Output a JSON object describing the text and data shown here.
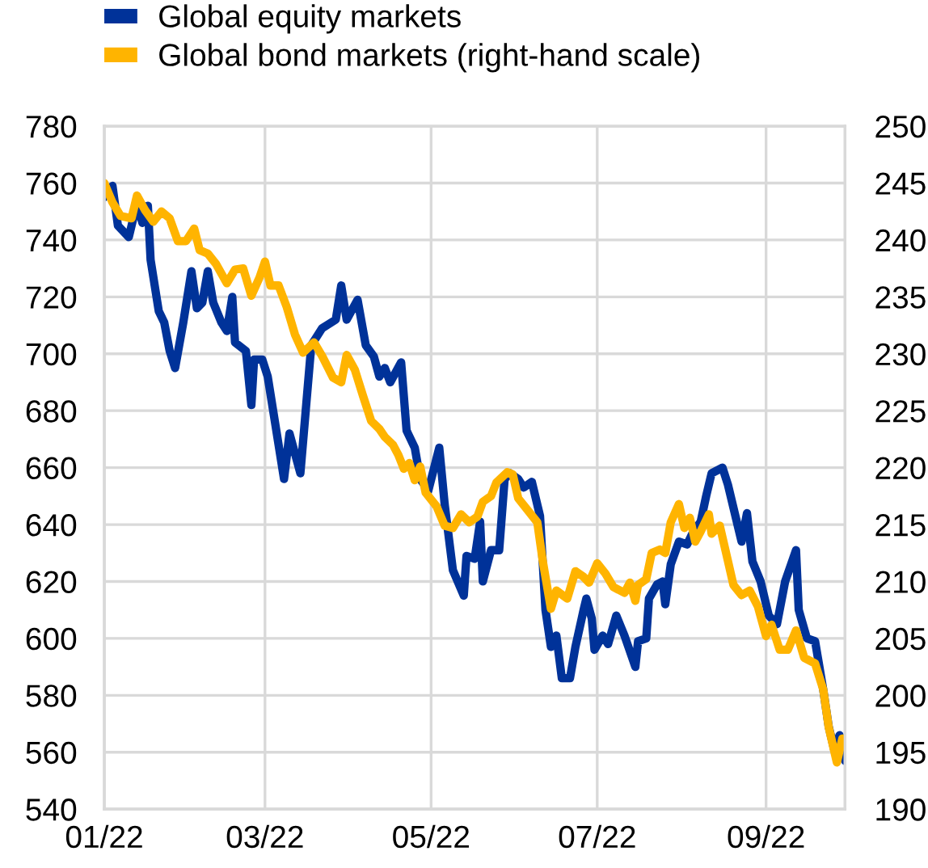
{
  "chart_data": {
    "type": "line",
    "xlim": [
      "2022-01-01",
      "2022-09-30"
    ],
    "xticks": [
      {
        "value": "2022-01-01",
        "label": "01/22"
      },
      {
        "value": "2022-03-01",
        "label": "03/22"
      },
      {
        "value": "2022-05-01",
        "label": "05/22"
      },
      {
        "value": "2022-07-01",
        "label": "07/22"
      },
      {
        "value": "2022-09-01",
        "label": "09/22"
      }
    ],
    "ylim": [
      540,
      780
    ],
    "yticks": [
      540,
      560,
      580,
      600,
      620,
      640,
      660,
      680,
      700,
      720,
      740,
      760,
      780
    ],
    "y2lim": [
      190,
      250
    ],
    "y2ticks": [
      190,
      195,
      200,
      205,
      210,
      215,
      220,
      225,
      230,
      235,
      240,
      245,
      250
    ],
    "grid": true,
    "legend": "top left",
    "series": [
      {
        "name": "Global equity markets",
        "color": "#003299",
        "x": [
          "2022-01-01",
          "2022-01-04",
          "2022-01-06",
          "2022-01-10",
          "2022-01-13",
          "2022-01-15",
          "2022-01-17",
          "2022-01-18",
          "2022-01-21",
          "2022-01-23",
          "2022-01-25",
          "2022-01-27",
          "2022-01-30",
          "2022-02-02",
          "2022-02-04",
          "2022-02-06",
          "2022-02-08",
          "2022-02-10",
          "2022-02-13",
          "2022-02-15",
          "2022-02-17",
          "2022-02-18",
          "2022-02-22",
          "2022-02-24",
          "2022-02-25",
          "2022-02-28",
          "2022-03-02",
          "2022-03-08",
          "2022-03-10",
          "2022-03-14",
          "2022-03-18",
          "2022-03-22",
          "2022-03-27",
          "2022-03-29",
          "2022-03-31",
          "2022-04-04",
          "2022-04-07",
          "2022-04-10",
          "2022-04-12",
          "2022-04-14",
          "2022-04-16",
          "2022-04-20",
          "2022-04-22",
          "2022-04-25",
          "2022-04-27",
          "2022-04-30",
          "2022-05-04",
          "2022-05-06",
          "2022-05-09",
          "2022-05-13",
          "2022-05-14",
          "2022-05-17",
          "2022-05-19",
          "2022-05-20",
          "2022-05-23",
          "2022-05-26",
          "2022-05-28",
          "2022-05-30",
          "2022-06-02",
          "2022-06-04",
          "2022-06-07",
          "2022-06-10",
          "2022-06-12",
          "2022-06-14",
          "2022-06-16",
          "2022-06-18",
          "2022-06-21",
          "2022-06-23",
          "2022-06-26",
          "2022-06-27",
          "2022-06-29",
          "2022-06-30",
          "2022-07-03",
          "2022-07-05",
          "2022-07-08",
          "2022-07-11",
          "2022-07-15",
          "2022-07-16",
          "2022-07-19",
          "2022-07-20",
          "2022-07-23",
          "2022-07-25",
          "2022-07-26",
          "2022-07-28",
          "2022-07-31",
          "2022-08-03",
          "2022-08-05",
          "2022-08-08",
          "2022-08-10",
          "2022-08-12",
          "2022-08-16",
          "2022-08-18",
          "2022-08-21",
          "2022-08-23",
          "2022-08-25",
          "2022-08-27",
          "2022-08-30",
          "2022-09-02",
          "2022-09-05",
          "2022-09-08",
          "2022-09-12",
          "2022-09-13",
          "2022-09-16",
          "2022-09-19",
          "2022-09-22",
          "2022-09-24",
          "2022-09-26",
          "2022-09-28",
          "2022-09-30"
        ],
        "values": [
          755,
          759,
          745,
          741,
          753,
          746,
          752,
          733,
          715,
          711,
          701,
          695,
          711,
          729,
          716,
          718,
          729,
          718,
          711,
          708,
          720,
          704,
          701,
          682,
          698,
          698,
          692,
          656,
          672,
          658,
          703,
          709,
          712,
          724,
          712,
          719,
          703,
          699,
          692,
          695,
          690,
          697,
          673,
          667,
          656,
          652,
          667,
          647,
          624,
          615,
          629,
          628,
          641,
          620,
          631,
          631,
          656,
          658,
          656,
          653,
          655,
          643,
          610,
          597,
          601,
          586,
          586,
          597,
          610,
          614,
          607,
          596,
          601,
          598,
          608,
          601,
          590,
          599,
          600,
          614,
          619,
          620,
          612,
          626,
          634,
          633,
          637,
          641,
          650,
          658,
          660,
          654,
          642,
          634,
          644,
          627,
          620,
          608,
          605,
          620,
          631,
          610,
          600,
          599,
          582,
          569,
          561,
          566,
          557
        ]
      },
      {
        "name": "Global bond markets (right-hand scale)",
        "color": "#ffb400",
        "axis": "y2",
        "x": [
          "2022-01-01",
          "2022-01-04",
          "2022-01-07",
          "2022-01-11",
          "2022-01-13",
          "2022-01-16",
          "2022-01-19",
          "2022-01-22",
          "2022-01-25",
          "2022-01-28",
          "2022-01-31",
          "2022-02-03",
          "2022-02-05",
          "2022-02-08",
          "2022-02-11",
          "2022-02-15",
          "2022-02-18",
          "2022-02-21",
          "2022-02-24",
          "2022-02-27",
          "2022-03-01",
          "2022-03-03",
          "2022-03-06",
          "2022-03-09",
          "2022-03-12",
          "2022-03-15",
          "2022-03-19",
          "2022-03-22",
          "2022-03-26",
          "2022-03-29",
          "2022-03-31",
          "2022-04-03",
          "2022-04-06",
          "2022-04-09",
          "2022-04-12",
          "2022-04-14",
          "2022-04-17",
          "2022-04-19",
          "2022-04-21",
          "2022-04-23",
          "2022-04-25",
          "2022-04-27",
          "2022-04-29",
          "2022-05-03",
          "2022-05-06",
          "2022-05-09",
          "2022-05-12",
          "2022-05-15",
          "2022-05-18",
          "2022-05-20",
          "2022-05-23",
          "2022-05-25",
          "2022-05-29",
          "2022-05-31",
          "2022-06-02",
          "2022-06-06",
          "2022-06-09",
          "2022-06-11",
          "2022-06-14",
          "2022-06-16",
          "2022-06-20",
          "2022-06-23",
          "2022-06-26",
          "2022-06-28",
          "2022-07-01",
          "2022-07-04",
          "2022-07-07",
          "2022-07-11",
          "2022-07-13",
          "2022-07-15",
          "2022-07-16",
          "2022-07-19",
          "2022-07-21",
          "2022-07-24",
          "2022-07-26",
          "2022-07-28",
          "2022-07-31",
          "2022-08-02",
          "2022-08-04",
          "2022-08-06",
          "2022-08-08",
          "2022-08-11",
          "2022-08-12",
          "2022-08-15",
          "2022-08-18",
          "2022-08-20",
          "2022-08-23",
          "2022-08-26",
          "2022-08-29",
          "2022-09-01",
          "2022-09-03",
          "2022-09-06",
          "2022-09-09",
          "2022-09-12",
          "2022-09-15",
          "2022-09-19",
          "2022-09-22",
          "2022-09-24",
          "2022-09-27",
          "2022-09-29",
          "2022-09-30"
        ],
        "values": [
          245.0,
          243.3,
          242.1,
          241.9,
          243.9,
          242.6,
          241.6,
          242.5,
          241.9,
          239.9,
          239.9,
          241.0,
          239.1,
          238.8,
          237.9,
          236.2,
          237.4,
          237.5,
          235.1,
          236.7,
          238.1,
          236.0,
          236.0,
          234.1,
          231.7,
          230.1,
          231.0,
          229.8,
          227.9,
          227.5,
          229.9,
          228.6,
          226.3,
          224.1,
          223.4,
          222.7,
          222.0,
          221.1,
          219.9,
          220.4,
          218.9,
          220.1,
          217.8,
          216.6,
          214.9,
          214.7,
          215.9,
          215.2,
          215.7,
          217.0,
          217.5,
          218.7,
          219.6,
          219.4,
          217.3,
          216.1,
          215.2,
          211.8,
          207.6,
          209.2,
          208.5,
          210.9,
          210.4,
          209.9,
          211.6,
          210.7,
          209.5,
          209.0,
          209.9,
          208.3,
          209.7,
          210.2,
          212.5,
          212.8,
          212.5,
          215.2,
          216.8,
          214.7,
          215.6,
          213.5,
          214.4,
          215.9,
          214.2,
          214.9,
          211.8,
          209.7,
          208.8,
          209.2,
          207.8,
          205.2,
          206.2,
          204.0,
          204.0,
          205.7,
          203.3,
          202.8,
          200.5,
          197.2,
          194.1,
          196.2,
          195.7
        ]
      }
    ]
  }
}
